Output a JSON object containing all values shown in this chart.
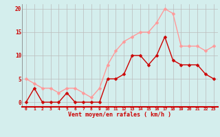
{
  "x": [
    0,
    1,
    2,
    3,
    4,
    5,
    6,
    7,
    8,
    9,
    10,
    11,
    12,
    13,
    14,
    15,
    16,
    17,
    18,
    19,
    20,
    21,
    22,
    23
  ],
  "y_moyen": [
    0,
    3,
    0,
    0,
    0,
    2,
    0,
    0,
    0,
    0,
    5,
    5,
    6,
    10,
    10,
    8,
    10,
    14,
    9,
    8,
    8,
    8,
    6,
    5
  ],
  "y_rafales": [
    5,
    4,
    3,
    3,
    2,
    3,
    3,
    2,
    1,
    3,
    8,
    11,
    13,
    14,
    15,
    15,
    17,
    20,
    19,
    12,
    12,
    12,
    11,
    12
  ],
  "color_moyen": "#cc0000",
  "color_rafales": "#ff9999",
  "bg_color": "#d4eeed",
  "grid_color": "#bbbbbb",
  "xlabel": "Vent moyen/en rafales ( km/h )",
  "ylim": [
    -1,
    21
  ],
  "yticks": [
    0,
    5,
    10,
    15,
    20
  ],
  "tick_color": "#cc0000",
  "xlabel_color": "#cc0000",
  "marker_size": 2.5,
  "line_width": 1.0
}
